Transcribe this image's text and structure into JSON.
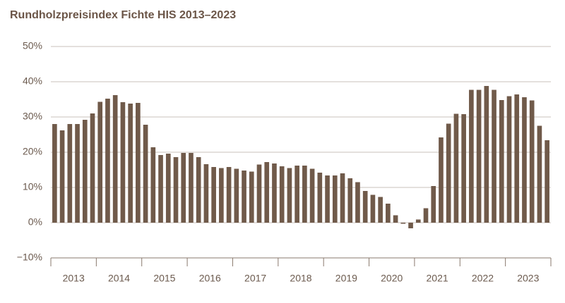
{
  "chart_data": {
    "type": "bar",
    "title": "Rundholzpreisindex Fichte HIS 2013–2023",
    "categories": [
      "2013",
      null,
      null,
      null,
      null,
      null,
      "2014",
      null,
      null,
      null,
      null,
      null,
      "2015",
      null,
      null,
      null,
      null,
      null,
      "2016",
      null,
      null,
      null,
      null,
      null,
      "2017",
      null,
      null,
      null,
      null,
      null,
      "2018",
      null,
      null,
      null,
      null,
      null,
      "2019",
      null,
      null,
      null,
      null,
      null,
      "2020",
      null,
      null,
      null,
      null,
      null,
      "2021",
      null,
      null,
      null,
      null,
      null,
      "2022",
      null,
      null,
      null,
      null,
      null,
      "2023",
      null,
      null,
      null,
      null,
      null
    ],
    "values": [
      28,
      26.2,
      28,
      28,
      29.2,
      31,
      34.3,
      35.2,
      36.2,
      34.2,
      33.8,
      34,
      27.8,
      21.4,
      19.2,
      19.6,
      18.6,
      19.8,
      19.8,
      18.6,
      16.6,
      15.8,
      15.5,
      15.8,
      15.3,
      14.8,
      14.5,
      16.5,
      17.2,
      16.8,
      16,
      15.5,
      16.2,
      16.2,
      15.3,
      14.2,
      13.4,
      13.4,
      14,
      12.6,
      11.5,
      9,
      7.9,
      7.3,
      5.4,
      2.1,
      -0.3,
      -1.6,
      0.9,
      4.1,
      10.4,
      24.2,
      28.1,
      30.9,
      30.8,
      37.7,
      37.7,
      38.8,
      37.7,
      34.8,
      35.9,
      36.4,
      35.6,
      34.7,
      27.5,
      23.4
    ],
    "color": "#705a4a",
    "ylim": [
      -10,
      50
    ],
    "yticks": [
      {
        "value": -10,
        "label": "−10%"
      },
      {
        "value": 0,
        "label": "0%"
      },
      {
        "value": 10,
        "label": "10%"
      },
      {
        "value": 20,
        "label": "20%"
      },
      {
        "value": 30,
        "label": "30%"
      },
      {
        "value": 40,
        "label": "40%"
      },
      {
        "value": 50,
        "label": "50%"
      }
    ],
    "grid": true
  }
}
